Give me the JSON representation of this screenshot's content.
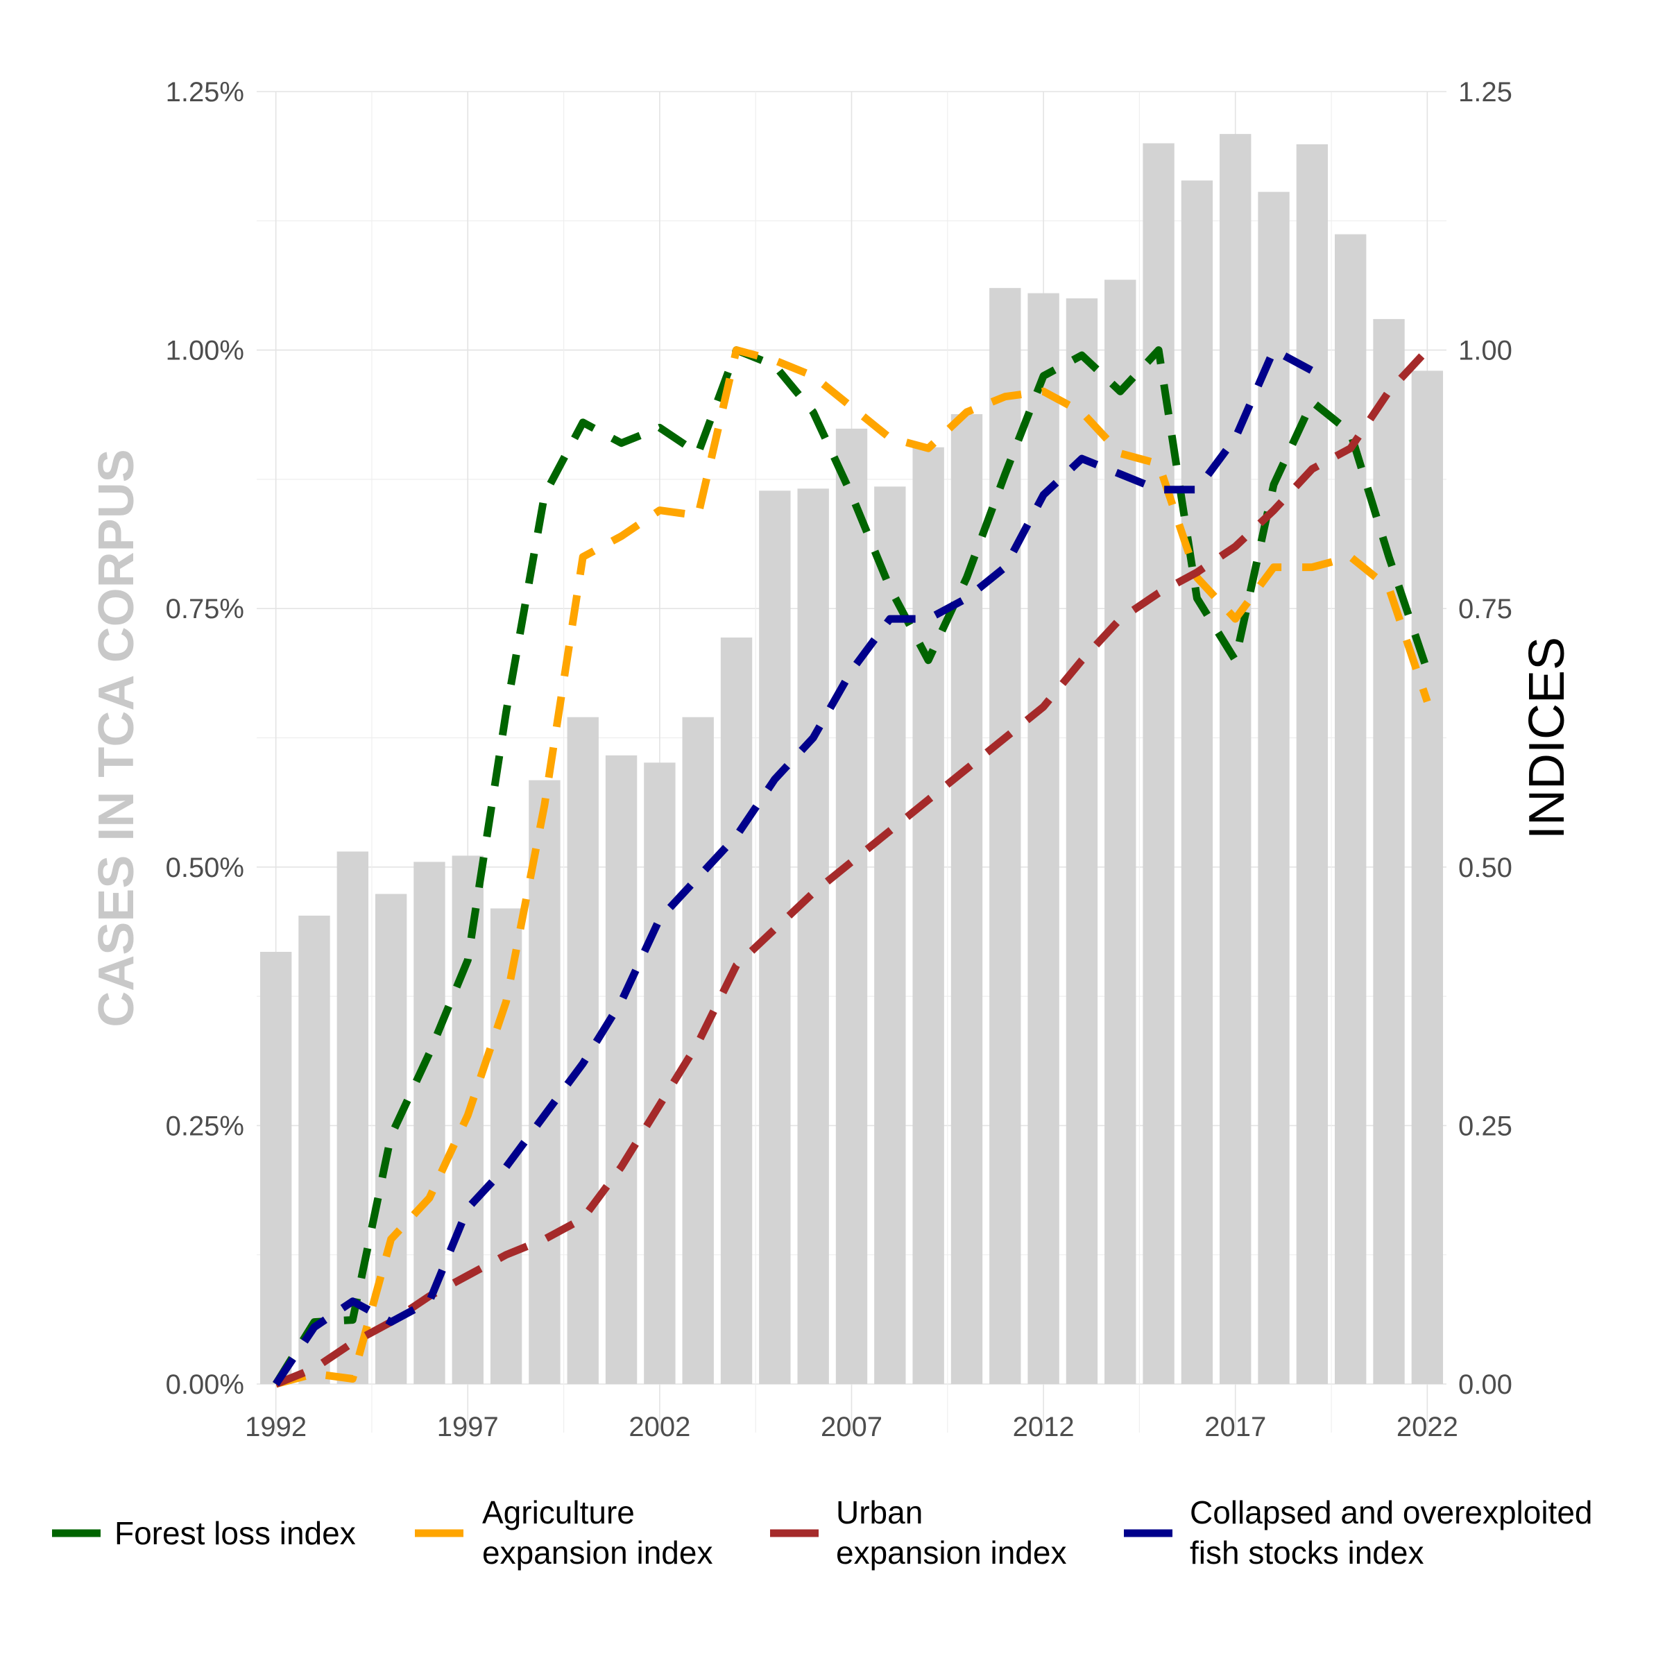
{
  "chart_data": {
    "type": "bar",
    "left_axis": {
      "title": "CASES IN TCA CORPUS",
      "ylim": [
        0,
        1.25
      ],
      "ticks": [
        0,
        0.25,
        0.5,
        0.75,
        1.0,
        1.25
      ],
      "tick_labels": [
        "0.00%",
        "0.25%",
        "0.50%",
        "0.75%",
        "1.00%",
        "1.25%"
      ]
    },
    "right_axis": {
      "title": "INDICES",
      "ylim": [
        0,
        1.25
      ],
      "ticks": [
        0,
        0.25,
        0.5,
        0.75,
        1.0,
        1.25
      ],
      "tick_labels": [
        "0.00",
        "0.25",
        "0.50",
        "0.75",
        "1.00",
        "1.25"
      ]
    },
    "x_axis": {
      "xlim": [
        1991.5,
        2022.5
      ],
      "ticks": [
        1992,
        1997,
        2002,
        2007,
        2012,
        2017,
        2022
      ],
      "tick_labels": [
        "1992",
        "1997",
        "2002",
        "2007",
        "2012",
        "2017",
        "2022"
      ]
    },
    "grid": true,
    "bars": {
      "color": "#d3d3d3",
      "x": [
        1992,
        1993,
        1994,
        1995,
        1996,
        1997,
        1998,
        1999,
        2000,
        2001,
        2002,
        2003,
        2004,
        2005,
        2006,
        2007,
        2008,
        2009,
        2010,
        2011,
        2012,
        2013,
        2014,
        2015,
        2016,
        2017,
        2018,
        2019,
        2020,
        2021,
        2022
      ],
      "values": [
        0.418,
        0.453,
        0.515,
        0.474,
        0.505,
        0.511,
        0.46,
        0.584,
        0.645,
        0.608,
        0.601,
        0.645,
        0.722,
        0.864,
        0.866,
        0.924,
        0.868,
        0.906,
        0.938,
        1.06,
        1.055,
        1.05,
        1.068,
        1.2,
        1.164,
        1.209,
        1.153,
        1.199,
        1.112,
        1.03,
        0.98
      ]
    },
    "series": [
      {
        "name": "Forest loss index",
        "color": "#006400",
        "x": [
          1992,
          1993,
          1994,
          1995,
          1996,
          1997,
          1998,
          1999,
          2000,
          2001,
          2002,
          2003,
          2004,
          2005,
          2006,
          2007,
          2008,
          2009,
          2010,
          2011,
          2012,
          2013,
          2014,
          2015,
          2016,
          2017,
          2018,
          2019,
          2020,
          2021,
          2022
        ],
        "values": [
          0.0,
          0.06,
          0.062,
          0.24,
          0.32,
          0.41,
          0.65,
          0.86,
          0.93,
          0.91,
          0.925,
          0.9,
          1.0,
          0.985,
          0.94,
          0.86,
          0.77,
          0.7,
          0.78,
          0.88,
          0.975,
          0.995,
          0.96,
          1.0,
          0.76,
          0.7,
          0.87,
          0.95,
          0.92,
          0.8,
          0.69
        ]
      },
      {
        "name": "Agriculture\nexpansion index",
        "color": "#ffa500",
        "x": [
          1992,
          1993,
          1994,
          1995,
          1996,
          1997,
          1998,
          1999,
          2000,
          2001,
          2002,
          2003,
          2004,
          2005,
          2006,
          2007,
          2008,
          2009,
          2010,
          2011,
          2012,
          2013,
          2014,
          2015,
          2016,
          2017,
          2018,
          2019,
          2020,
          2021,
          2022
        ],
        "values": [
          0.0,
          0.01,
          0.005,
          0.14,
          0.18,
          0.26,
          0.37,
          0.56,
          0.8,
          0.82,
          0.845,
          0.84,
          1.0,
          0.99,
          0.975,
          0.945,
          0.915,
          0.905,
          0.94,
          0.955,
          0.96,
          0.94,
          0.9,
          0.89,
          0.78,
          0.74,
          0.79,
          0.79,
          0.8,
          0.77,
          0.66
        ]
      },
      {
        "name": "Urban\nexpansion index",
        "color": "#a52a2a",
        "x": [
          1992,
          1993,
          1994,
          1995,
          1996,
          1997,
          1998,
          1999,
          2000,
          2001,
          2002,
          2003,
          2004,
          2005,
          2006,
          2007,
          2008,
          2009,
          2010,
          2011,
          2012,
          2013,
          2014,
          2015,
          2016,
          2017,
          2018,
          2019,
          2020,
          2021,
          2022
        ],
        "values": [
          0.0,
          0.015,
          0.04,
          0.06,
          0.085,
          0.105,
          0.125,
          0.14,
          0.16,
          0.21,
          0.27,
          0.33,
          0.405,
          0.44,
          0.475,
          0.505,
          0.535,
          0.565,
          0.595,
          0.625,
          0.655,
          0.7,
          0.74,
          0.765,
          0.785,
          0.81,
          0.845,
          0.885,
          0.905,
          0.96,
          1.0
        ]
      },
      {
        "name": "Collapsed and overexploited\nfish stocks index",
        "color": "#00008b",
        "x": [
          1992,
          1993,
          1994,
          1995,
          1996,
          1997,
          1998,
          1999,
          2000,
          2001,
          2002,
          2003,
          2004,
          2005,
          2006,
          2007,
          2008,
          2009,
          2010,
          2011,
          2012,
          2013,
          2014,
          2015,
          2016,
          2017,
          2018,
          2019,
          2020,
          2021,
          2022
        ],
        "values": [
          0.0,
          0.055,
          0.08,
          0.06,
          0.08,
          0.17,
          0.21,
          0.26,
          0.31,
          0.37,
          0.45,
          0.49,
          0.53,
          0.585,
          0.625,
          0.69,
          0.74,
          0.74,
          0.76,
          0.79,
          0.86,
          0.895,
          0.88,
          0.865,
          0.865,
          0.915,
          1.0,
          0.98,
          null,
          null,
          null
        ]
      }
    ],
    "legend": {
      "position": "bottom",
      "items": [
        {
          "label": [
            "Forest loss index"
          ],
          "color": "#006400"
        },
        {
          "label": [
            "Agriculture",
            "expansion index"
          ],
          "color": "#ffa500"
        },
        {
          "label": [
            "Urban",
            "expansion index"
          ],
          "color": "#a52a2a"
        },
        {
          "label": [
            "Collapsed and overexploited",
            "fish stocks index"
          ],
          "color": "#00008b"
        }
      ]
    }
  }
}
